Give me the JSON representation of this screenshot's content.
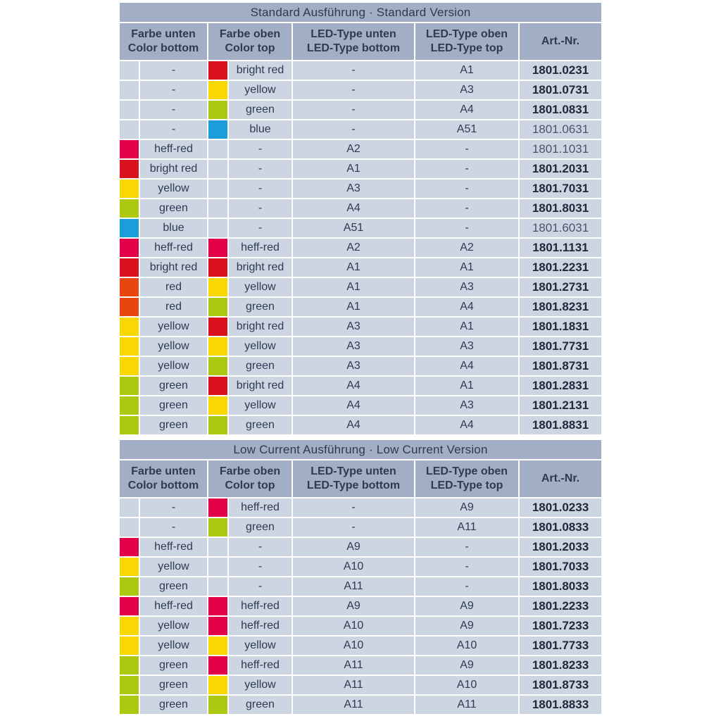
{
  "colors": {
    "theme": {
      "page_bg": "#ffffff",
      "header_bg": "#a2aec3",
      "row_bg": "#cdd5e2",
      "text_dark": "#2d3a52",
      "art_bold": "#1f2838",
      "art_light": "#49536a"
    },
    "swatches": {
      "bright_red": "#d9121d",
      "heff_red": "#e30249",
      "red": "#e7470e",
      "yellow": "#f8d800",
      "green": "#acc90f",
      "blue": "#1b9dd9"
    }
  },
  "tables": [
    {
      "title": "Standard Ausführung · Standard Version",
      "columns": [
        {
          "line1": "Farbe unten",
          "line2": "Color bottom"
        },
        {
          "line1": "Farbe oben",
          "line2": "Color top"
        },
        {
          "line1": "LED-Type unten",
          "line2": "LED-Type bottom"
        },
        {
          "line1": "LED-Type oben",
          "line2": "LED-Type top"
        },
        {
          "line1": "Art.-Nr."
        }
      ],
      "rows": [
        {
          "color_bottom": "-",
          "swatch_bottom": null,
          "color_top": "bright red",
          "swatch_top": "bright_red",
          "led_bottom": "-",
          "led_top": "A1",
          "art_nr": "1801.0231",
          "bold": true
        },
        {
          "color_bottom": "-",
          "swatch_bottom": null,
          "color_top": "yellow",
          "swatch_top": "yellow",
          "led_bottom": "-",
          "led_top": "A3",
          "art_nr": "1801.0731",
          "bold": true
        },
        {
          "color_bottom": "-",
          "swatch_bottom": null,
          "color_top": "green",
          "swatch_top": "green",
          "led_bottom": "-",
          "led_top": "A4",
          "art_nr": "1801.0831",
          "bold": true
        },
        {
          "color_bottom": "-",
          "swatch_bottom": null,
          "color_top": "blue",
          "swatch_top": "blue",
          "led_bottom": "-",
          "led_top": "A51",
          "art_nr": "1801.0631",
          "bold": false
        },
        {
          "color_bottom": "heff-red",
          "swatch_bottom": "heff_red",
          "color_top": "-",
          "swatch_top": null,
          "led_bottom": "A2",
          "led_top": "-",
          "art_nr": "1801.1031",
          "bold": false
        },
        {
          "color_bottom": "bright red",
          "swatch_bottom": "bright_red",
          "color_top": "-",
          "swatch_top": null,
          "led_bottom": "A1",
          "led_top": "-",
          "art_nr": "1801.2031",
          "bold": true
        },
        {
          "color_bottom": "yellow",
          "swatch_bottom": "yellow",
          "color_top": "-",
          "swatch_top": null,
          "led_bottom": "A3",
          "led_top": "-",
          "art_nr": "1801.7031",
          "bold": true
        },
        {
          "color_bottom": "green",
          "swatch_bottom": "green",
          "color_top": "-",
          "swatch_top": null,
          "led_bottom": "A4",
          "led_top": "-",
          "art_nr": "1801.8031",
          "bold": true
        },
        {
          "color_bottom": "blue",
          "swatch_bottom": "blue",
          "color_top": "-",
          "swatch_top": null,
          "led_bottom": "A51",
          "led_top": "-",
          "art_nr": "1801.6031",
          "bold": false
        },
        {
          "color_bottom": "heff-red",
          "swatch_bottom": "heff_red",
          "color_top": "heff-red",
          "swatch_top": "heff_red",
          "led_bottom": "A2",
          "led_top": "A2",
          "art_nr": "1801.1131",
          "bold": true
        },
        {
          "color_bottom": "bright red",
          "swatch_bottom": "bright_red",
          "color_top": "bright red",
          "swatch_top": "bright_red",
          "led_bottom": "A1",
          "led_top": "A1",
          "art_nr": "1801.2231",
          "bold": true
        },
        {
          "color_bottom": "red",
          "swatch_bottom": "red",
          "color_top": "yellow",
          "swatch_top": "yellow",
          "led_bottom": "A1",
          "led_top": "A3",
          "art_nr": "1801.2731",
          "bold": true
        },
        {
          "color_bottom": "red",
          "swatch_bottom": "red",
          "color_top": "green",
          "swatch_top": "green",
          "led_bottom": "A1",
          "led_top": "A4",
          "art_nr": "1801.8231",
          "bold": true
        },
        {
          "color_bottom": "yellow",
          "swatch_bottom": "yellow",
          "color_top": "bright red",
          "swatch_top": "bright_red",
          "led_bottom": "A3",
          "led_top": "A1",
          "art_nr": "1801.1831",
          "bold": true
        },
        {
          "color_bottom": "yellow",
          "swatch_bottom": "yellow",
          "color_top": "yellow",
          "swatch_top": "yellow",
          "led_bottom": "A3",
          "led_top": "A3",
          "art_nr": "1801.7731",
          "bold": true
        },
        {
          "color_bottom": "yellow",
          "swatch_bottom": "yellow",
          "color_top": "green",
          "swatch_top": "green",
          "led_bottom": "A3",
          "led_top": "A4",
          "art_nr": "1801.8731",
          "bold": true
        },
        {
          "color_bottom": "green",
          "swatch_bottom": "green",
          "color_top": "bright red",
          "swatch_top": "bright_red",
          "led_bottom": "A4",
          "led_top": "A1",
          "art_nr": "1801.2831",
          "bold": true
        },
        {
          "color_bottom": "green",
          "swatch_bottom": "green",
          "color_top": "yellow",
          "swatch_top": "yellow",
          "led_bottom": "A4",
          "led_top": "A3",
          "art_nr": "1801.2131",
          "bold": true
        },
        {
          "color_bottom": "green",
          "swatch_bottom": "green",
          "color_top": "green",
          "swatch_top": "green",
          "led_bottom": "A4",
          "led_top": "A4",
          "art_nr": "1801.8831",
          "bold": true
        }
      ]
    },
    {
      "title": "Low Current Ausführung · Low Current Version",
      "columns": [
        {
          "line1": "Farbe unten",
          "line2": "Color bottom"
        },
        {
          "line1": "Farbe oben",
          "line2": "Color top"
        },
        {
          "line1": "LED-Type unten",
          "line2": "LED-Type bottom"
        },
        {
          "line1": "LED-Type oben",
          "line2": "LED-Type top"
        },
        {
          "line1": "Art.-Nr."
        }
      ],
      "rows": [
        {
          "color_bottom": "-",
          "swatch_bottom": null,
          "color_top": "heff-red",
          "swatch_top": "heff_red",
          "led_bottom": "-",
          "led_top": "A9",
          "art_nr": "1801.0233",
          "bold": true
        },
        {
          "color_bottom": "-",
          "swatch_bottom": null,
          "color_top": "green",
          "swatch_top": "green",
          "led_bottom": "-",
          "led_top": "A11",
          "art_nr": "1801.0833",
          "bold": true
        },
        {
          "color_bottom": "heff-red",
          "swatch_bottom": "heff_red",
          "color_top": "-",
          "swatch_top": null,
          "led_bottom": "A9",
          "led_top": "-",
          "art_nr": "1801.2033",
          "bold": true
        },
        {
          "color_bottom": "yellow",
          "swatch_bottom": "yellow",
          "color_top": "-",
          "swatch_top": null,
          "led_bottom": "A10",
          "led_top": "-",
          "art_nr": "1801.7033",
          "bold": true
        },
        {
          "color_bottom": "green",
          "swatch_bottom": "green",
          "color_top": "-",
          "swatch_top": null,
          "led_bottom": "A11",
          "led_top": "-",
          "art_nr": "1801.8033",
          "bold": true
        },
        {
          "color_bottom": "heff-red",
          "swatch_bottom": "heff_red",
          "color_top": "heff-red",
          "swatch_top": "heff_red",
          "led_bottom": "A9",
          "led_top": "A9",
          "art_nr": "1801.2233",
          "bold": true
        },
        {
          "color_bottom": "yellow",
          "swatch_bottom": "yellow",
          "color_top": "heff-red",
          "swatch_top": "heff_red",
          "led_bottom": "A10",
          "led_top": "A9",
          "art_nr": "1801.7233",
          "bold": true
        },
        {
          "color_bottom": "yellow",
          "swatch_bottom": "yellow",
          "color_top": "yellow",
          "swatch_top": "yellow",
          "led_bottom": "A10",
          "led_top": "A10",
          "art_nr": "1801.7733",
          "bold": true
        },
        {
          "color_bottom": "green",
          "swatch_bottom": "green",
          "color_top": "heff-red",
          "swatch_top": "heff_red",
          "led_bottom": "A11",
          "led_top": "A9",
          "art_nr": "1801.8233",
          "bold": true
        },
        {
          "color_bottom": "green",
          "swatch_bottom": "green",
          "color_top": "yellow",
          "swatch_top": "yellow",
          "led_bottom": "A11",
          "led_top": "A10",
          "art_nr": "1801.8733",
          "bold": true
        },
        {
          "color_bottom": "green",
          "swatch_bottom": "green",
          "color_top": "green",
          "swatch_top": "green",
          "led_bottom": "A11",
          "led_top": "A11",
          "art_nr": "1801.8833",
          "bold": true
        }
      ]
    }
  ]
}
